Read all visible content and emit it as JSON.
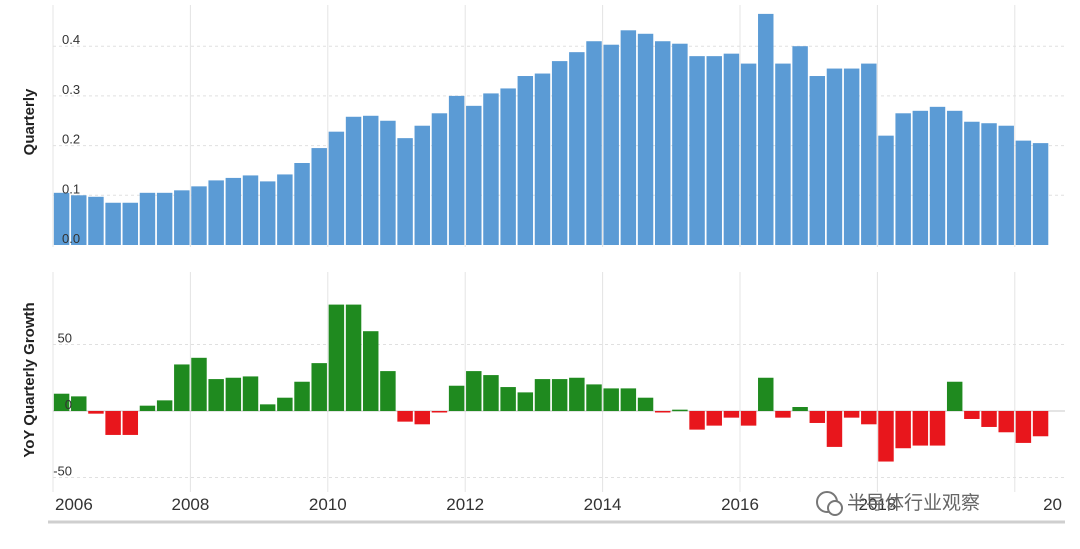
{
  "chart_data": [
    {
      "type": "bar",
      "ylabel": "Quarterly",
      "ylim": [
        0,
        0.48
      ],
      "yticks": [
        "0.0",
        "0.1",
        "0.2",
        "0.3",
        "0.4"
      ],
      "color": "#5b9bd5",
      "x_start": 2006.0,
      "x_step": 0.25,
      "values": [
        0.105,
        0.1,
        0.097,
        0.085,
        0.085,
        0.105,
        0.105,
        0.11,
        0.118,
        0.13,
        0.135,
        0.14,
        0.128,
        0.142,
        0.165,
        0.195,
        0.228,
        0.258,
        0.26,
        0.25,
        0.215,
        0.24,
        0.265,
        0.3,
        0.28,
        0.305,
        0.315,
        0.34,
        0.345,
        0.37,
        0.388,
        0.41,
        0.403,
        0.432,
        0.425,
        0.41,
        0.405,
        0.38,
        0.38,
        0.385,
        0.365,
        0.465,
        0.365,
        0.4,
        0.34,
        0.355,
        0.355,
        0.365,
        0.22,
        0.265,
        0.27,
        0.278,
        0.27,
        0.248,
        0.245,
        0.24,
        0.21,
        0.205
      ]
    },
    {
      "type": "bar",
      "ylabel": "YoY Quarterly Growth",
      "ylim": [
        -55,
        85
      ],
      "yticks": [
        "-50",
        "0",
        "50"
      ],
      "colors": {
        "positive": "#1f8a1f",
        "negative": "#e8161c"
      },
      "x_start": 2006.0,
      "x_step": 0.25,
      "values": [
        13,
        11,
        -2,
        -18,
        -18,
        4,
        8,
        35,
        40,
        24,
        25,
        26,
        5,
        10,
        22,
        36,
        80,
        80,
        60,
        30,
        -8,
        -10,
        -1,
        19,
        30,
        27,
        18,
        14,
        24,
        24,
        25,
        20,
        17,
        17,
        10,
        -1,
        1,
        -14,
        -11,
        -5,
        -11,
        25,
        -5,
        3,
        -9,
        -27,
        -5,
        -10,
        -38,
        -28,
        -26,
        -26,
        22,
        -6,
        -12,
        -16,
        -24,
        -19
      ]
    },
    {
      "type": "axis",
      "x_ticks": [
        "2006",
        "2008",
        "2010",
        "2012",
        "2014",
        "2016",
        "2018",
        "20"
      ]
    }
  ],
  "watermark": "半导体行业观察"
}
